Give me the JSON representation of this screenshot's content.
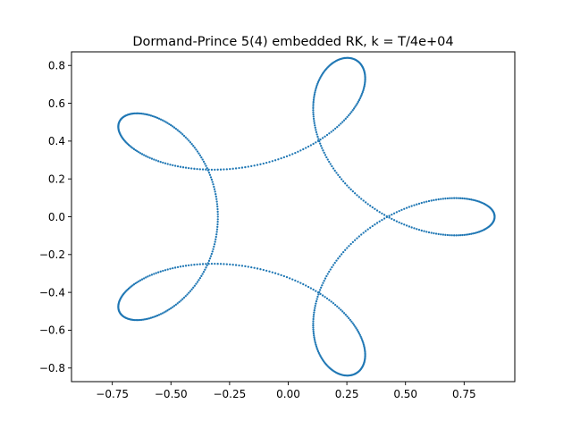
{
  "chart_data": {
    "type": "scatter",
    "title": "Dormand-Prince 5(4) embedded RK, k = T/4e+04",
    "xlabel": "",
    "ylabel": "",
    "xlim": [
      -0.924,
      0.966
    ],
    "ylim": [
      -0.872,
      0.872
    ],
    "xticks": [
      -0.75,
      -0.5,
      -0.25,
      0.0,
      0.25,
      0.5,
      0.75
    ],
    "xtick_labels": [
      "−0.75",
      "−0.50",
      "−0.25",
      "0.00",
      "0.25",
      "0.50",
      "0.75"
    ],
    "yticks": [
      -0.8,
      -0.6,
      -0.4,
      -0.2,
      0.0,
      0.2,
      0.4,
      0.6,
      0.8
    ],
    "ytick_labels": [
      "−0.8",
      "−0.6",
      "−0.4",
      "−0.2",
      "0.0",
      "0.2",
      "0.4",
      "0.6",
      "0.8"
    ],
    "grid": false,
    "legend": "none",
    "marker_color": "#1f77b4",
    "series": [
      {
        "orbit": {
          "outer_loop_radius": 0.88,
          "inner_radius": 0.3,
          "lobes": 5,
          "phase": 0.0,
          "samples": 820
        }
      }
    ]
  }
}
